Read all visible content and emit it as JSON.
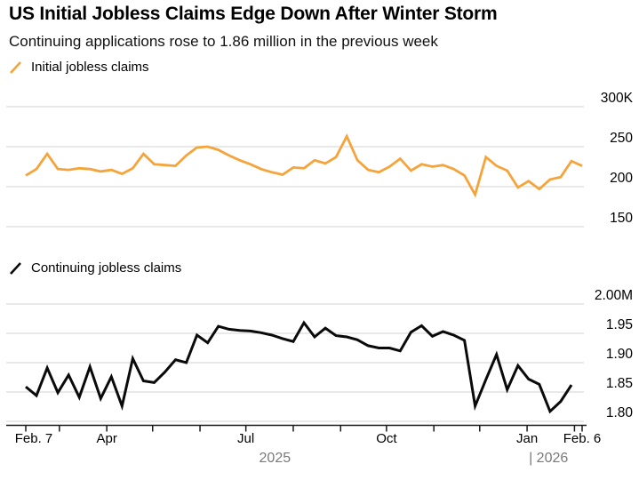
{
  "header": {
    "title": "US Initial Jobless Claims Edge Down After Winter Storm",
    "subtitle": "Continuing applications rose to 1.86 million in the previous week"
  },
  "colors": {
    "initial_line": "#F5A43B",
    "continuing_line": "#0a0a0a",
    "grid": "#d3d3d3",
    "axis": "#1a1a1a",
    "tick_label": "#000000",
    "year_label": "#7a7a7a"
  },
  "x_axis": {
    "start_label": "Feb. 7",
    "end_label": "Feb. 6",
    "total_days": 364,
    "ticks": [
      {
        "day": 0,
        "label": "Feb. 7"
      },
      {
        "day": 22,
        "label": ""
      },
      {
        "day": 53,
        "label": "Apr"
      },
      {
        "day": 83,
        "label": ""
      },
      {
        "day": 114,
        "label": ""
      },
      {
        "day": 144,
        "label": "Jul"
      },
      {
        "day": 175,
        "label": ""
      },
      {
        "day": 206,
        "label": ""
      },
      {
        "day": 236,
        "label": "Oct"
      },
      {
        "day": 267,
        "label": ""
      },
      {
        "day": 297,
        "label": ""
      },
      {
        "day": 328,
        "label": "Jan"
      },
      {
        "day": 359,
        "label": ""
      },
      {
        "day": 364,
        "label": "Feb. 6"
      }
    ],
    "year_labels": [
      {
        "text": "2025",
        "day": 163
      },
      {
        "text": "| 2026",
        "day": 342
      }
    ]
  },
  "chart_data": [
    {
      "type": "line",
      "name": "initial-jobless-claims",
      "title": "Initial jobless claims",
      "unit": "thousands of claims, weekly",
      "color": "#F5A43B",
      "stroke_width": 2.8,
      "ylim": [
        150,
        300
      ],
      "y_ticks": [
        "300K",
        "250",
        "200",
        "150"
      ],
      "y_tick_values": [
        300,
        250,
        200,
        150
      ],
      "x_start": "Feb. 7, 2025",
      "x_end": "Feb. 6, 2026",
      "values": [
        214,
        222,
        241,
        222,
        221,
        223,
        222,
        219,
        221,
        216,
        223,
        241,
        228,
        227,
        226,
        239,
        249,
        250,
        246,
        239,
        233,
        228,
        222,
        218,
        215,
        224,
        223,
        233,
        229,
        237,
        263,
        233,
        221,
        218,
        225,
        235,
        220,
        228,
        225,
        227,
        222,
        214,
        190,
        237,
        226,
        220,
        199,
        207,
        197,
        209,
        212,
        232,
        226
      ]
    },
    {
      "type": "line",
      "name": "continuing-jobless-claims",
      "title": "Continuing jobless claims",
      "unit": "millions of claims, weekly",
      "color": "#0a0a0a",
      "stroke_width": 3,
      "ylim": [
        1.8,
        2.0
      ],
      "y_ticks": [
        "2.00M",
        "1.95",
        "1.90",
        "1.85",
        "1.80"
      ],
      "y_tick_values": [
        2.0,
        1.95,
        1.9,
        1.85,
        1.8
      ],
      "x_start": "Feb. 7, 2025",
      "x_end": "Jan. 30, 2026",
      "values": [
        1.859,
        1.844,
        1.891,
        1.849,
        1.879,
        1.841,
        1.893,
        1.839,
        1.876,
        1.826,
        1.907,
        1.869,
        1.866,
        1.884,
        1.905,
        1.9,
        1.947,
        1.934,
        1.962,
        1.957,
        1.955,
        1.954,
        1.951,
        1.947,
        1.941,
        1.936,
        1.968,
        1.944,
        1.959,
        1.946,
        1.944,
        1.939,
        1.929,
        1.925,
        1.925,
        1.92,
        1.952,
        1.963,
        1.945,
        1.953,
        1.947,
        1.938,
        1.826,
        1.871,
        1.914,
        1.854,
        1.895,
        1.872,
        1.863,
        1.817,
        1.834,
        1.862
      ]
    }
  ]
}
